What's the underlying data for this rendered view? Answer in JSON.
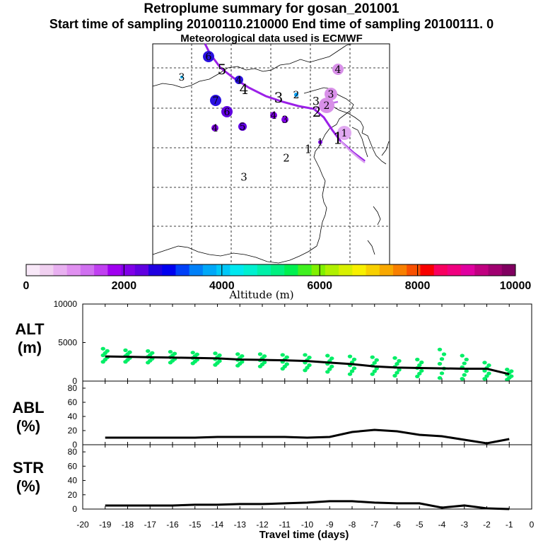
{
  "header": {
    "title": "Retroplume summary for gosan_201001",
    "sampling": "Start time of sampling 20100110.210000     End time of sampling 20100111.     0",
    "met": "Meteorological data used is ECMWF"
  },
  "colorbar": {
    "label": "Altitude (m)",
    "ticks": [
      "0",
      "2000",
      "4000",
      "6000",
      "8000",
      "10000"
    ],
    "colors": [
      "#f8e8f8",
      "#f0d0f0",
      "#e8b0f0",
      "#e090f0",
      "#d070f0",
      "#c040f0",
      "#a000f0",
      "#8000e8",
      "#6000e0",
      "#2000e0",
      "#0000f0",
      "#0040f8",
      "#0080f8",
      "#00a8f8",
      "#00c8f8",
      "#00e8f0",
      "#00f0d0",
      "#00f0a8",
      "#00f080",
      "#00f050",
      "#40f020",
      "#80f000",
      "#b0f000",
      "#d8f000",
      "#f8f000",
      "#f8d000",
      "#f8a800",
      "#f88000",
      "#f85000",
      "#f80000",
      "#f80060",
      "#f00080",
      "#e000a0",
      "#c00080",
      "#a00070",
      "#800060"
    ]
  },
  "map": {
    "trajectory_color": "#9b20e8",
    "labels": [
      {
        "t": "6",
        "x": 295,
        "y": 80,
        "r": 8,
        "c": "#2a10e0",
        "fs": 14
      },
      {
        "t": "5",
        "x": 314,
        "y": 98,
        "r": 0,
        "c": "#000000",
        "fs": 20
      },
      {
        "t": "4",
        "x": 338,
        "y": 113,
        "r": 6,
        "c": "#2a10e0",
        "fs": 14
      },
      {
        "t": "4",
        "x": 345,
        "y": 126,
        "r": 0,
        "c": "#000000",
        "fs": 20
      },
      {
        "t": "3",
        "x": 257,
        "y": 109,
        "r": 2,
        "c": "#00b0f8",
        "fs": 14
      },
      {
        "t": "7",
        "x": 305,
        "y": 142,
        "r": 8,
        "c": "#2a10e0",
        "fs": 14
      },
      {
        "t": "6",
        "x": 321,
        "y": 158,
        "r": 8,
        "c": "#6000e0",
        "fs": 14
      },
      {
        "t": "5",
        "x": 343,
        "y": 179,
        "r": 6,
        "c": "#6000e0",
        "fs": 14
      },
      {
        "t": "4",
        "x": 304,
        "y": 181,
        "r": 5,
        "c": "#8000e8",
        "fs": 14
      },
      {
        "t": "3",
        "x": 394,
        "y": 138,
        "r": 0,
        "c": "#000000",
        "fs": 20
      },
      {
        "t": "2",
        "x": 419,
        "y": 134,
        "r": 3,
        "c": "#00a0f8",
        "fs": 14
      },
      {
        "t": "4",
        "x": 387,
        "y": 163,
        "r": 5,
        "c": "#8000e8",
        "fs": 14
      },
      {
        "t": "3",
        "x": 403,
        "y": 169,
        "r": 5,
        "c": "#8000e8",
        "fs": 14
      },
      {
        "t": "4",
        "x": 478,
        "y": 98,
        "r": 8,
        "c": "#d890e8",
        "fs": 14
      },
      {
        "t": "3",
        "x": 468,
        "y": 133,
        "r": 9,
        "c": "#d890e8",
        "fs": 14
      },
      {
        "t": "3",
        "x": 447,
        "y": 143,
        "r": 0,
        "c": "#000000",
        "fs": 16
      },
      {
        "t": "2",
        "x": 462,
        "y": 149,
        "r": 11,
        "c": "#d890e8",
        "fs": 14
      },
      {
        "t": "2",
        "x": 448,
        "y": 158,
        "r": 0,
        "c": "#000000",
        "fs": 20
      },
      {
        "t": "1",
        "x": 487,
        "y": 188,
        "r": 10,
        "c": "#e0a8f0",
        "fs": 14
      },
      {
        "t": "1",
        "x": 478,
        "y": 196,
        "r": 0,
        "c": "#000000",
        "fs": 22
      },
      {
        "t": "1",
        "x": 453,
        "y": 201,
        "r": 3,
        "c": "#8000e8",
        "fs": 13
      },
      {
        "t": "1",
        "x": 436,
        "y": 211,
        "r": 0,
        "c": "#000000",
        "fs": 16
      },
      {
        "t": "2",
        "x": 405,
        "y": 223,
        "r": 0,
        "c": "#000000",
        "fs": 15
      },
      {
        "t": "3",
        "x": 345,
        "y": 250,
        "r": 0,
        "c": "#000000",
        "fs": 15
      }
    ]
  },
  "chart_data": [
    {
      "type": "scatter",
      "name": "ALT",
      "ylabel": "ALT (m)",
      "ylim": [
        0,
        10000
      ],
      "yticks": [
        "10000",
        "5000",
        "0"
      ],
      "xlim": [
        -20,
        0
      ],
      "x": [
        -19,
        -18,
        -17,
        -16,
        -15,
        -14,
        -13,
        -12,
        -11,
        -10,
        -9,
        -8,
        -7,
        -6,
        -5,
        -4,
        -3,
        -2,
        -1
      ],
      "median": [
        3200,
        3150,
        3100,
        3050,
        3000,
        2950,
        2800,
        2750,
        2700,
        2600,
        2400,
        2200,
        1900,
        1750,
        1700,
        1650,
        1600,
        1600,
        900
      ],
      "scatter_color": "#00ee66",
      "spread_low": [
        2500,
        2500,
        2400,
        2400,
        2300,
        2100,
        2000,
        1900,
        1600,
        1400,
        1200,
        900,
        900,
        700,
        600,
        400,
        300,
        300,
        200
      ],
      "spread_high": [
        4200,
        4000,
        3900,
        3800,
        3700,
        3600,
        3500,
        3500,
        3400,
        3400,
        3300,
        3200,
        3100,
        3000,
        2800,
        4100,
        3300,
        2400,
        1500
      ]
    },
    {
      "type": "line",
      "name": "ABL",
      "ylabel": "ABL (%)",
      "ylim": [
        0,
        90
      ],
      "yticks": [
        "80",
        "60",
        "40",
        "20",
        "0"
      ],
      "x": [
        -19,
        -18,
        -17,
        -16,
        -15,
        -14,
        -13,
        -12,
        -11,
        -10,
        -9,
        -8,
        -7,
        -6,
        -5,
        -4,
        -3,
        -2,
        -1
      ],
      "values": [
        10,
        10,
        10,
        10,
        10,
        11,
        11,
        11,
        11,
        10,
        11,
        18,
        21,
        19,
        14,
        12,
        7,
        2,
        8
      ]
    },
    {
      "type": "line",
      "name": "STR",
      "ylabel": "STR (%)",
      "ylim": [
        0,
        90
      ],
      "yticks": [
        "80",
        "60",
        "40",
        "20",
        "0"
      ],
      "x": [
        -19,
        -18,
        -17,
        -16,
        -15,
        -14,
        -13,
        -12,
        -11,
        -10,
        -9,
        -8,
        -7,
        -6,
        -5,
        -4,
        -3,
        -2,
        -1
      ],
      "values": [
        5,
        5,
        5,
        5,
        6,
        6,
        7,
        7,
        8,
        9,
        11,
        11,
        9,
        8,
        8,
        2,
        5,
        1,
        0
      ]
    }
  ],
  "xaxis": {
    "label": "Travel time (days)",
    "ticks": [
      "-20",
      "-19",
      "-18",
      "-17",
      "-16",
      "-15",
      "-14",
      "-13",
      "-12",
      "-11",
      "-10",
      "-9",
      "-8",
      "-7",
      "-6",
      "-5",
      "-4",
      "-3",
      "-2",
      "-1",
      "0"
    ]
  },
  "panel_labels": {
    "alt": [
      "ALT",
      "(m)"
    ],
    "abl": [
      "ABL",
      "(%)"
    ],
    "str": [
      "STR",
      "(%)"
    ]
  }
}
